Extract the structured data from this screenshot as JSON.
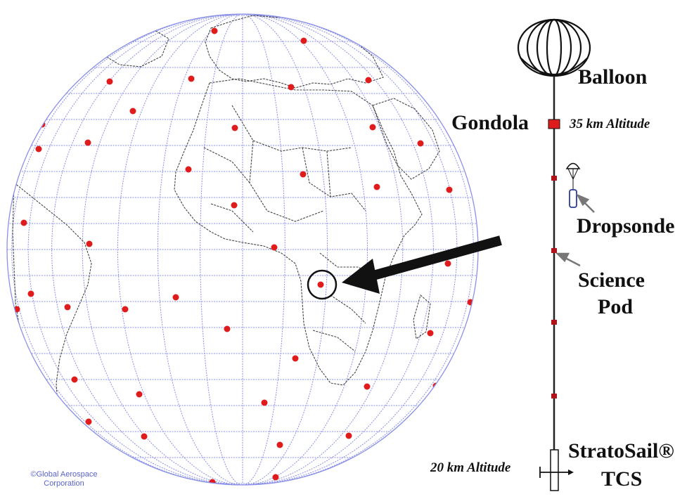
{
  "labels": {
    "balloon": "Balloon",
    "gondola": "Gondola",
    "altitude_top": "35 km Altitude",
    "dropsonde": "Dropsonde",
    "science_pod_line1": "Science",
    "science_pod_line2": "Pod",
    "altitude_bottom": "20 km Altitude",
    "stratosail_line1": "StratoSail®",
    "stratosail_line2": "TCS",
    "credit_line1": "©Global Aerospace",
    "credit_line2": "Corporation"
  },
  "colors": {
    "grid": "#8a90e8",
    "dot": "#e01b1b",
    "coast": "#444444",
    "tether": "#222222",
    "credit": "#5a63c8"
  },
  "icons": [
    "balloon-icon",
    "gondola-icon",
    "dropsonde-icon",
    "science-pod-icon",
    "tcs-icon",
    "arrow-icon"
  ]
}
